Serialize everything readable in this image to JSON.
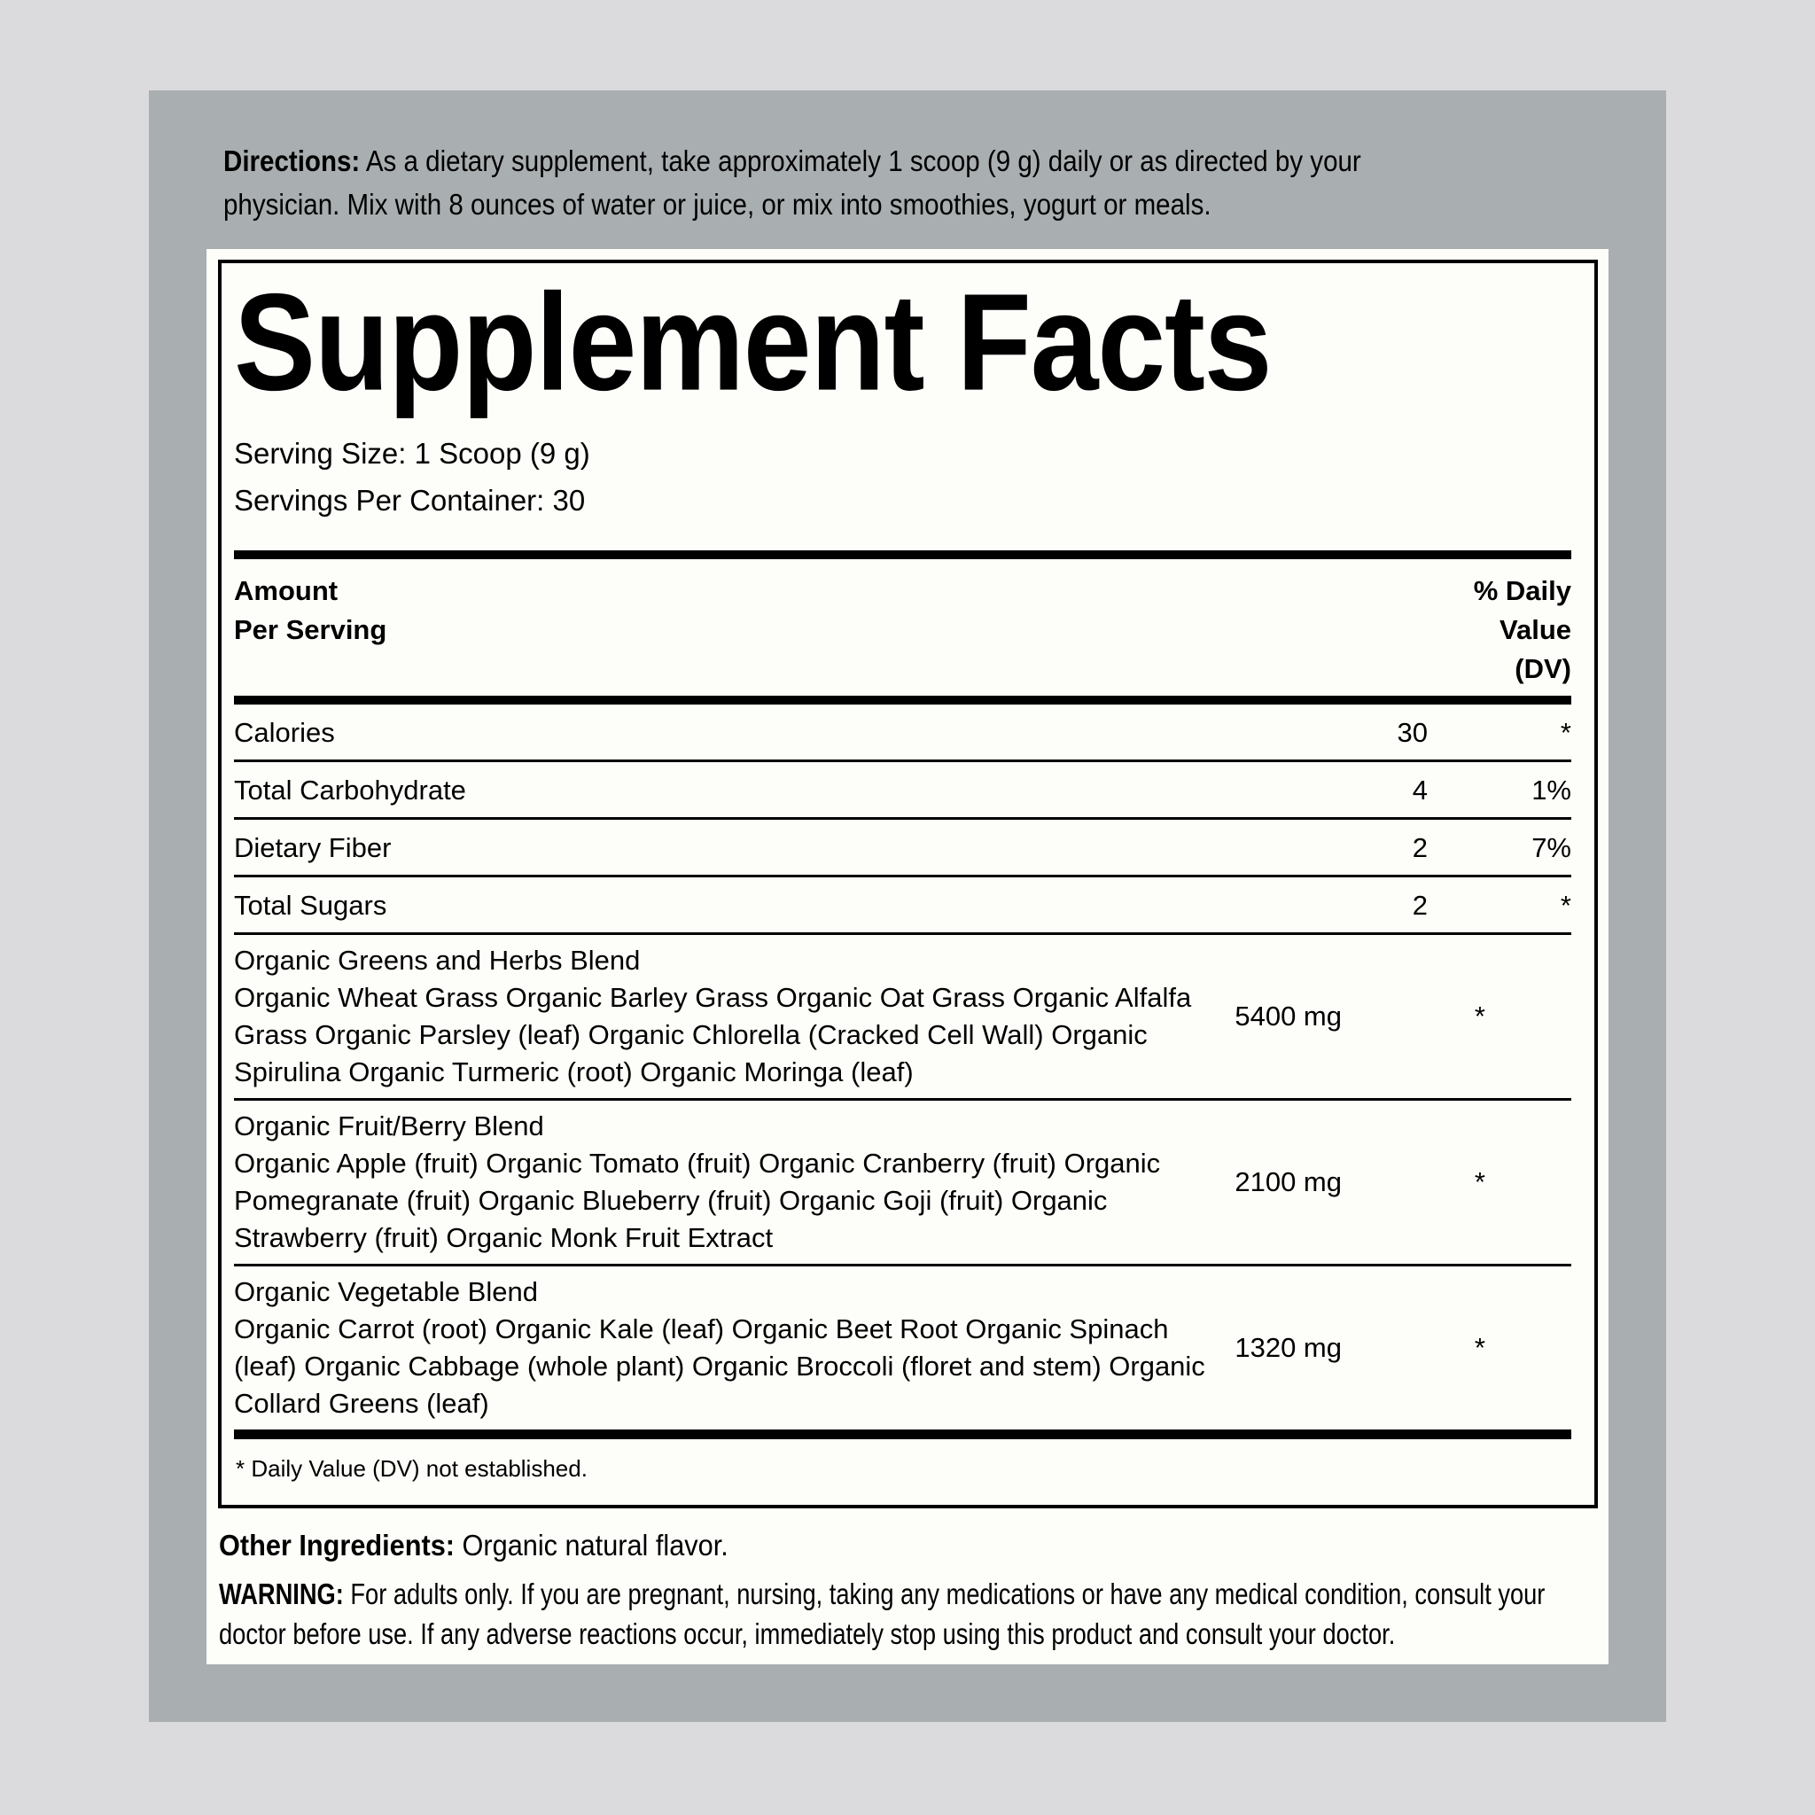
{
  "colors": {
    "page_bg": "#dbdadd",
    "panel_bg": "#a9aeb0",
    "card_bg": "#fdfdfa",
    "text": "#000000"
  },
  "directions": {
    "label": "Directions:",
    "text": "As a dietary supplement, take approximately 1 scoop (9 g) daily or as directed by your physician. Mix with 8 ounces of water or juice, or mix into smoothies, yogurt or meals."
  },
  "supplement_facts": {
    "title": "Supplement Facts",
    "serving_size": "Serving Size: 1 Scoop (9 g)",
    "servings_per_container": "Servings Per Container: 30",
    "columns": {
      "amount_line1": "Amount",
      "amount_line2": "Per Serving",
      "dv_line1": "% Daily",
      "dv_line2": "Value",
      "dv_line3": "(DV)"
    },
    "rows": [
      {
        "name": "Calories",
        "amount": "30",
        "dv": "*"
      },
      {
        "name": "Total Carbohydrate",
        "amount": "4",
        "dv": "1%"
      },
      {
        "name": "Dietary Fiber",
        "amount": "2",
        "dv": "7%"
      },
      {
        "name": "Total Sugars",
        "amount": "2",
        "dv": "*"
      }
    ],
    "blends": [
      {
        "title": "Organic Greens and Herbs Blend",
        "ingredients": "Organic Wheat Grass Organic Barley Grass Organic Oat Grass Organic Alfalfa Grass Organic Parsley (leaf) Organic Chlorella (Cracked Cell Wall) Organic Spirulina Organic Turmeric (root) Organic Moringa (leaf)",
        "amount": "5400 mg",
        "dv": "*"
      },
      {
        "title": "Organic Fruit/Berry Blend",
        "ingredients": "Organic Apple (fruit) Organic Tomato (fruit) Organic Cranberry (fruit) Organic Pomegranate (fruit) Organic Blueberry (fruit) Organic Goji (fruit) Organic Strawberry (fruit) Organic Monk Fruit Extract",
        "amount": "2100 mg",
        "dv": "*"
      },
      {
        "title": "Organic Vegetable Blend",
        "ingredients": "Organic Carrot (root) Organic Kale (leaf) Organic Beet Root Organic Spinach (leaf) Organic Cabbage (whole plant) Organic Broccoli (floret and stem) Organic Collard Greens (leaf)",
        "amount": "1320 mg",
        "dv": "*"
      }
    ],
    "footnote": "* Daily Value (DV) not established."
  },
  "other_ingredients": {
    "label": "Other Ingredients:",
    "text": "Organic natural flavor."
  },
  "warning": {
    "label": "WARNING:",
    "text": "For adults only. If you are pregnant, nursing, taking any medications or have any medical condition, consult your doctor before use. If any adverse reactions occur, immediately stop using this product and consult your doctor."
  }
}
